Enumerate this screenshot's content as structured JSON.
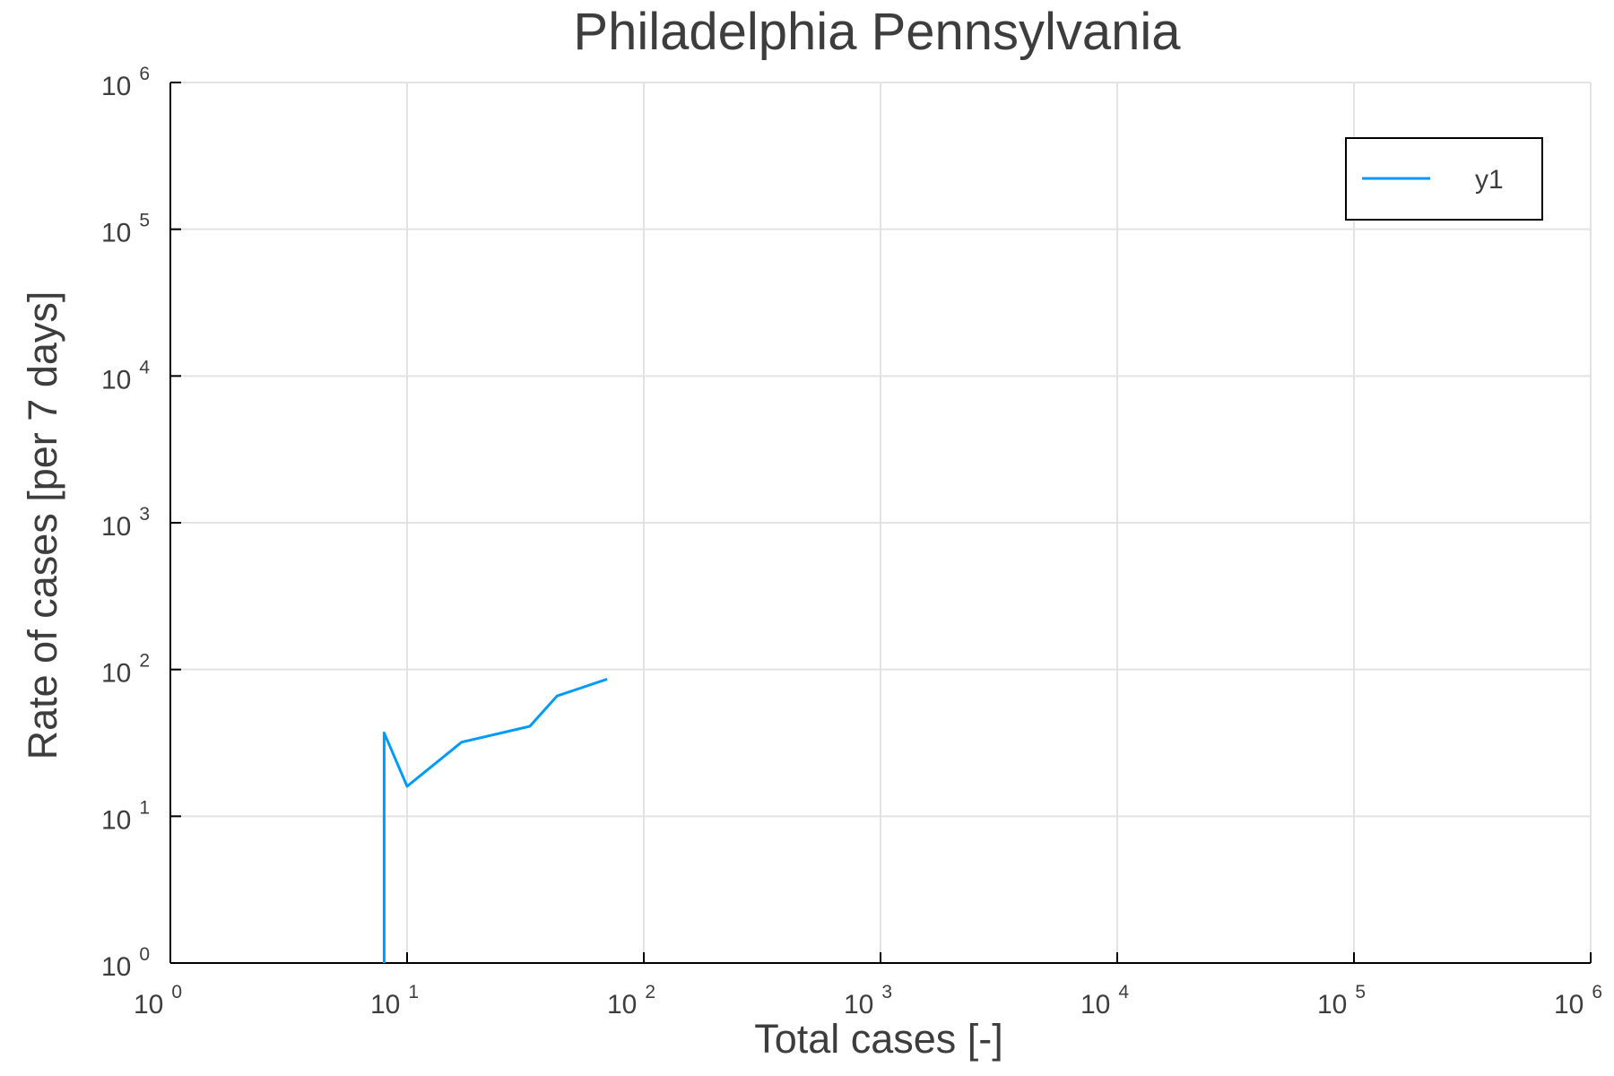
{
  "chart_data": {
    "type": "line",
    "title": "Philadelphia Pennsylvania",
    "xlabel": "Total cases [-]",
    "ylabel": "Rate of cases [per 7 days]",
    "xscale": "log",
    "yscale": "log",
    "xlim": [
      1,
      1000000
    ],
    "ylim": [
      1,
      1000000
    ],
    "x_ticks": [
      {
        "base": "10",
        "exp": "0"
      },
      {
        "base": "10",
        "exp": "1"
      },
      {
        "base": "10",
        "exp": "2"
      },
      {
        "base": "10",
        "exp": "3"
      },
      {
        "base": "10",
        "exp": "4"
      },
      {
        "base": "10",
        "exp": "5"
      },
      {
        "base": "10",
        "exp": "6"
      }
    ],
    "y_ticks": [
      {
        "base": "10",
        "exp": "0"
      },
      {
        "base": "10",
        "exp": "1"
      },
      {
        "base": "10",
        "exp": "2"
      },
      {
        "base": "10",
        "exp": "3"
      },
      {
        "base": "10",
        "exp": "4"
      },
      {
        "base": "10",
        "exp": "5"
      },
      {
        "base": "10",
        "exp": "6"
      }
    ],
    "grid": true,
    "legend_position": "top-right",
    "series": [
      {
        "name": "y1",
        "color": "#009af9",
        "x": [
          8,
          8,
          10,
          17,
          33,
          43,
          70
        ],
        "y": [
          1,
          37,
          16,
          32,
          41,
          66,
          86
        ]
      }
    ]
  }
}
